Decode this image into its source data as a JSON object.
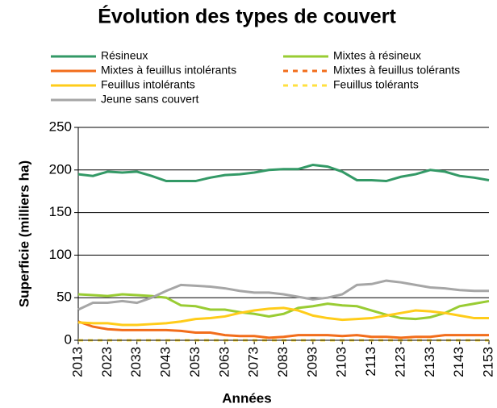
{
  "chart_data": {
    "type": "line",
    "title": "Évolution des types de couvert",
    "xlabel": "Années",
    "ylabel": "Superficie (milliers ha)",
    "x": [
      2013,
      2018,
      2023,
      2028,
      2033,
      2038,
      2043,
      2048,
      2053,
      2058,
      2063,
      2068,
      2073,
      2078,
      2083,
      2088,
      2093,
      2098,
      2103,
      2108,
      2113,
      2118,
      2123,
      2128,
      2133,
      2138,
      2143,
      2148,
      2153
    ],
    "xlim": [
      2013,
      2153
    ],
    "xticks": [
      2013,
      2023,
      2033,
      2043,
      2053,
      2063,
      2073,
      2083,
      2093,
      2103,
      2113,
      2123,
      2133,
      2143,
      2153
    ],
    "ylim": [
      0,
      250
    ],
    "yticks": [
      0,
      50,
      100,
      150,
      200,
      250
    ],
    "grid": true,
    "legend": "top",
    "series": [
      {
        "name": "Résineux",
        "color": "#339966",
        "dashed": false,
        "values": [
          195,
          193,
          198,
          197,
          198,
          193,
          187,
          187,
          187,
          191,
          194,
          195,
          197,
          200,
          201,
          201,
          206,
          204,
          198,
          188,
          188,
          187,
          192,
          195,
          200,
          198,
          193,
          191,
          188
        ]
      },
      {
        "name": "Mixtes à résineux",
        "color": "#99cc33",
        "dashed": false,
        "values": [
          54,
          53,
          52,
          54,
          53,
          52,
          50,
          41,
          40,
          36,
          36,
          33,
          31,
          28,
          31,
          38,
          40,
          43,
          41,
          40,
          35,
          30,
          26,
          25,
          27,
          32,
          40,
          43,
          46
        ]
      },
      {
        "name": "Mixtes à feuillus intolérants",
        "color": "#f26d1b",
        "dashed": false,
        "values": [
          22,
          16,
          13,
          12,
          12,
          12,
          12,
          11,
          9,
          9,
          6,
          5,
          5,
          3,
          4,
          6,
          6,
          6,
          5,
          6,
          4,
          4,
          3,
          4,
          4,
          6,
          6,
          6,
          6
        ]
      },
      {
        "name": "Mixtes à feuillus tolérants",
        "color": "#f26d1b",
        "dashed": true,
        "values": [
          0,
          0,
          0,
          0,
          0,
          0,
          0,
          0,
          0,
          0,
          0,
          0,
          0,
          0,
          0,
          0,
          0,
          0,
          0,
          0,
          0,
          0,
          0,
          0,
          0,
          0,
          0,
          0,
          0
        ]
      },
      {
        "name": "Feuillus intolérants",
        "color": "#ffcc1a",
        "dashed": false,
        "values": [
          21,
          20,
          20,
          18,
          18,
          19,
          20,
          22,
          25,
          26,
          28,
          32,
          35,
          37,
          38,
          35,
          29,
          26,
          24,
          25,
          26,
          29,
          32,
          35,
          34,
          32,
          29,
          26,
          26
        ]
      },
      {
        "name": "Feuillus tolérants",
        "color": "#ffe040",
        "dashed": true,
        "values": [
          0,
          0,
          0,
          0,
          0,
          0,
          0,
          0,
          0,
          0,
          0,
          0,
          0,
          0,
          0,
          0,
          0,
          0,
          0,
          0,
          0,
          0,
          0,
          0,
          0,
          0,
          0,
          0,
          0
        ]
      },
      {
        "name": "Jeune sans couvert",
        "color": "#a6a6a6",
        "dashed": false,
        "values": [
          36,
          44,
          44,
          46,
          44,
          50,
          58,
          65,
          64,
          63,
          61,
          58,
          56,
          56,
          54,
          51,
          48,
          50,
          54,
          65,
          66,
          70,
          68,
          65,
          62,
          61,
          59,
          58,
          58
        ]
      }
    ]
  }
}
